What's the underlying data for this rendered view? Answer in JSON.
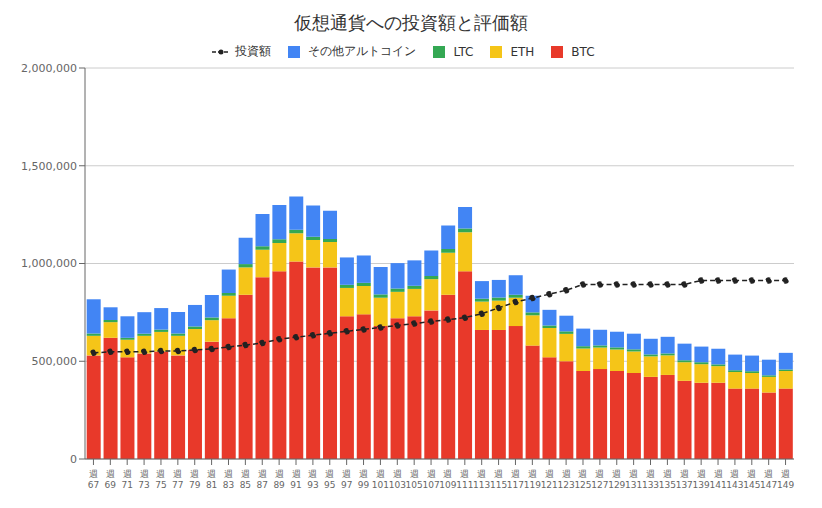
{
  "chart_data": {
    "type": "bar",
    "title": "仮想通貨への投資額と評価額",
    "stacked": true,
    "grid": true,
    "legend": "top",
    "categories": [
      "週\n67",
      "週\n69",
      "週\n71",
      "週\n73",
      "週\n75",
      "週\n77",
      "週\n79",
      "週\n81",
      "週\n83",
      "週\n85",
      "週\n87",
      "週\n89",
      "週\n91",
      "週\n93",
      "週\n95",
      "週\n97",
      "週\n99",
      "週\n101",
      "週\n103",
      "週\n105",
      "週\n107",
      "週\n109",
      "週\n111",
      "週\n113",
      "週\n115",
      "週\n117",
      "週\n119",
      "週\n121",
      "週\n123",
      "週\n125",
      "週\n127",
      "週\n129",
      "週\n131",
      "週\n133",
      "週\n135",
      "週\n137",
      "週\n139",
      "週\n141",
      "週\n143",
      "週\n145",
      "週\n147",
      "週\n149"
    ],
    "ylim": [
      0,
      2000000
    ],
    "yticks": [
      0,
      {
        "value": 500000,
        "label": "500,000"
      },
      {
        "value": 1000000,
        "label": "1,000,000"
      },
      {
        "value": 1500000,
        "label": "1,500,000"
      },
      {
        "value": 2000000,
        "label": "2,000,000"
      }
    ],
    "series": [
      {
        "name": "BTC",
        "type": "bar",
        "color": "#e8392a",
        "values": [
          530000,
          620000,
          520000,
          540000,
          550000,
          530000,
          560000,
          600000,
          720000,
          840000,
          930000,
          960000,
          1010000,
          980000,
          980000,
          730000,
          740000,
          680000,
          720000,
          730000,
          760000,
          840000,
          960000,
          660000,
          660000,
          680000,
          580000,
          520000,
          500000,
          450000,
          460000,
          450000,
          440000,
          420000,
          430000,
          400000,
          390000,
          390000,
          360000,
          360000,
          340000,
          360000
        ]
      },
      {
        "name": "ETH",
        "type": "bar",
        "color": "#f5c518",
        "values": [
          100000,
          80000,
          90000,
          90000,
          100000,
          100000,
          105000,
          110000,
          115000,
          140000,
          140000,
          145000,
          145000,
          140000,
          130000,
          145000,
          145000,
          145000,
          135000,
          140000,
          160000,
          215000,
          200000,
          145000,
          150000,
          145000,
          155000,
          150000,
          140000,
          115000,
          110000,
          110000,
          110000,
          105000,
          100000,
          95000,
          95000,
          85000,
          85000,
          80000,
          80000,
          90000
        ]
      },
      {
        "name": "LTC",
        "type": "bar",
        "color": "#34a853",
        "values": [
          12000,
          11000,
          10000,
          11000,
          12000,
          12000,
          13000,
          14000,
          14000,
          17000,
          18000,
          19000,
          18000,
          17000,
          15000,
          16000,
          16000,
          17000,
          17000,
          16000,
          16000,
          19000,
          19000,
          15000,
          16000,
          15000,
          15000,
          13000,
          13000,
          12000,
          11000,
          11000,
          11000,
          10000,
          10000,
          10000,
          10000,
          9000,
          9000,
          9000,
          8000,
          8000
        ]
      },
      {
        "name": "その他アルトコイン",
        "type": "bar",
        "color": "#4285f4",
        "values": [
          175000,
          65000,
          110000,
          110000,
          110000,
          110000,
          110000,
          115000,
          120000,
          135000,
          165000,
          175000,
          170000,
          160000,
          145000,
          140000,
          140000,
          140000,
          130000,
          130000,
          130000,
          120000,
          110000,
          90000,
          90000,
          100000,
          85000,
          80000,
          80000,
          90000,
          80000,
          80000,
          80000,
          80000,
          85000,
          85000,
          80000,
          80000,
          80000,
          80000,
          80000,
          85000
        ]
      },
      {
        "name": "投資額",
        "type": "line",
        "color": "#222222",
        "marker": "circle",
        "line_style": "dashed",
        "values": [
          543000,
          548000,
          548000,
          548000,
          553000,
          553000,
          558000,
          563000,
          573000,
          583000,
          593000,
          613000,
          623000,
          633000,
          643000,
          653000,
          663000,
          673000,
          683000,
          693000,
          703000,
          713000,
          723000,
          743000,
          773000,
          803000,
          823000,
          843000,
          863000,
          893000,
          893000,
          893000,
          893000,
          893000,
          893000,
          893000,
          913000,
          913000,
          913000,
          913000,
          913000,
          913000
        ]
      }
    ]
  }
}
